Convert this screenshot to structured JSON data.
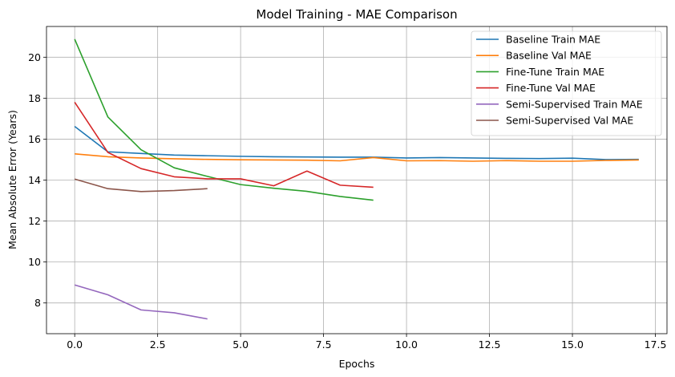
{
  "chart_data": {
    "type": "line",
    "title": "Model Training - MAE Comparison",
    "xlabel": "Epochs",
    "ylabel": "Mean Absolute Error (Years)",
    "xlim": [
      -0.85,
      17.85
    ],
    "ylim": [
      6.5,
      21.5
    ],
    "xticks": [
      0.0,
      2.5,
      5.0,
      7.5,
      10.0,
      12.5,
      15.0,
      17.5
    ],
    "xtick_labels": [
      "0.0",
      "2.5",
      "5.0",
      "7.5",
      "10.0",
      "12.5",
      "15.0",
      "17.5"
    ],
    "yticks": [
      8,
      10,
      12,
      14,
      16,
      18,
      20
    ],
    "ytick_labels": [
      "8",
      "10",
      "12",
      "14",
      "16",
      "18",
      "20"
    ],
    "grid": true,
    "legend_position": "top-right",
    "series": [
      {
        "name": "Baseline Train MAE",
        "color": "#1f77b4",
        "x": [
          0,
          1,
          2,
          3,
          4,
          5,
          6,
          7,
          8,
          9,
          10,
          11,
          12,
          13,
          14,
          15,
          16,
          17
        ],
        "y": [
          16.62,
          15.38,
          15.3,
          15.22,
          15.19,
          15.16,
          15.14,
          15.13,
          15.12,
          15.12,
          15.08,
          15.1,
          15.08,
          15.06,
          15.05,
          15.07,
          15.0,
          15.01
        ]
      },
      {
        "name": "Baseline Val MAE",
        "color": "#ff7f0e",
        "x": [
          0,
          1,
          2,
          3,
          4,
          5,
          6,
          7,
          8,
          9,
          10,
          11,
          12,
          13,
          14,
          15,
          16,
          17
        ],
        "y": [
          15.28,
          15.14,
          15.08,
          15.04,
          15.01,
          14.99,
          14.98,
          14.97,
          14.94,
          15.1,
          14.94,
          14.95,
          14.92,
          14.95,
          14.92,
          14.92,
          14.96,
          14.98
        ]
      },
      {
        "name": "Fine-Tune Train MAE",
        "color": "#2ca02c",
        "x": [
          0,
          1,
          2,
          3,
          4,
          5,
          6,
          7,
          8,
          9
        ],
        "y": [
          20.88,
          17.08,
          15.48,
          14.6,
          14.18,
          13.78,
          13.6,
          13.45,
          13.2,
          13.02
        ]
      },
      {
        "name": "Fine-Tune Val MAE",
        "color": "#d62728",
        "x": [
          0,
          1,
          2,
          3,
          4,
          5,
          6,
          7,
          8,
          9
        ],
        "y": [
          17.8,
          15.35,
          14.56,
          14.16,
          14.06,
          14.06,
          13.72,
          14.44,
          13.75,
          13.65
        ]
      },
      {
        "name": "Semi-Supervised Train MAE",
        "color": "#9467bd",
        "x": [
          0,
          1,
          2,
          3,
          4
        ],
        "y": [
          8.88,
          8.4,
          7.66,
          7.52,
          7.22
        ]
      },
      {
        "name": "Semi-Supervised Val MAE",
        "color": "#8c564b",
        "x": [
          0,
          1,
          2,
          3,
          4
        ],
        "y": [
          14.05,
          13.58,
          13.44,
          13.49,
          13.58
        ]
      }
    ]
  }
}
